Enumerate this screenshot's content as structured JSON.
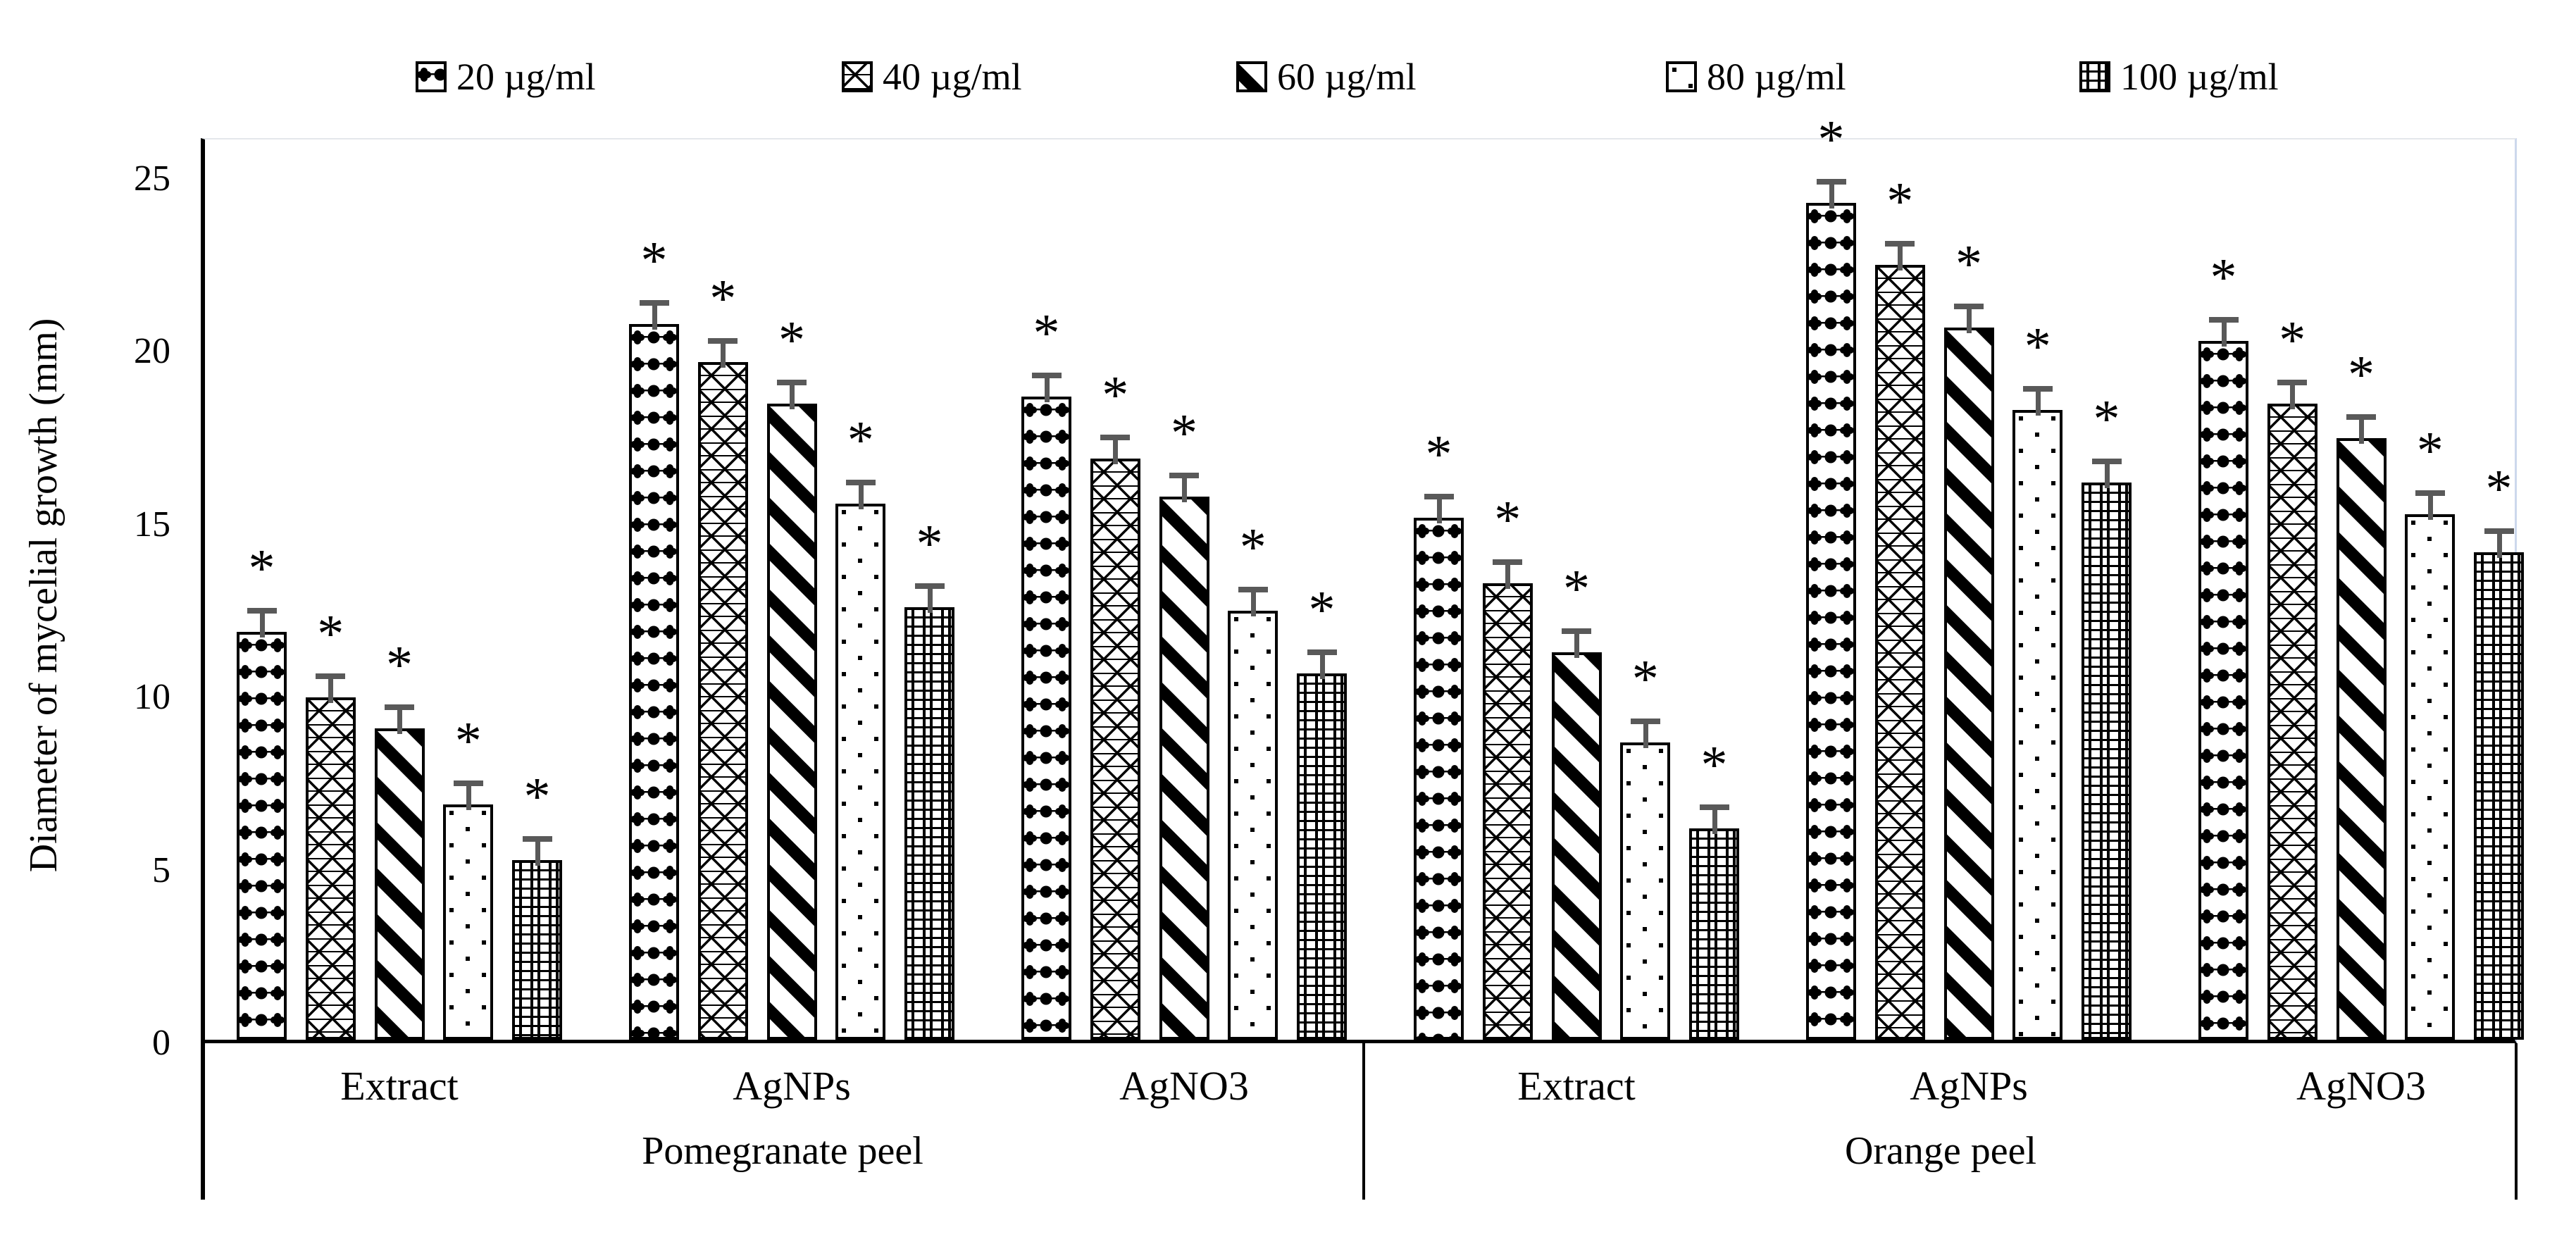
{
  "chart_data": {
    "type": "bar",
    "title": "",
    "ylabel": "Diameter of mycelial growth (mm)",
    "ylim": [
      0,
      25
    ],
    "yticks": [
      "0",
      "5",
      "10",
      "15",
      "20",
      "25"
    ],
    "grid": false,
    "legend_position": "top",
    "series_labels": [
      "20 µg/ml",
      "40 µg/ml",
      "60 µg/ml",
      "80 µg/ml",
      "100 µg/ml"
    ],
    "series_pattern_icons": [
      "diamond-clover-rows-pattern",
      "diagonal-crosshatch-pattern",
      "downward-diagonal-stripe-pattern",
      "sparse-dots-pattern",
      "tartan-grid-pattern"
    ],
    "groups": [
      {
        "peel": "Pomegranate peel",
        "treatment": "Extract",
        "values": [
          11.8,
          9.9,
          9.0,
          6.8,
          5.2
        ]
      },
      {
        "peel": "Pomegranate peel",
        "treatment": "AgNPs",
        "values": [
          20.7,
          19.6,
          18.4,
          15.5,
          12.5
        ]
      },
      {
        "peel": "Pomegranate peel",
        "treatment": "AgNO3",
        "values": [
          18.6,
          16.8,
          15.7,
          12.4,
          10.6
        ]
      },
      {
        "peel": "Orange peel",
        "treatment": "Extract",
        "values": [
          15.1,
          13.2,
          11.2,
          8.6,
          6.1
        ]
      },
      {
        "peel": "Orange peel",
        "treatment": "AgNPs",
        "values": [
          24.2,
          22.4,
          20.6,
          18.2,
          16.1
        ]
      },
      {
        "peel": "Orange peel",
        "treatment": "AgNO3",
        "values": [
          20.2,
          18.4,
          17.4,
          15.2,
          14.1
        ]
      }
    ],
    "group_axis": {
      "level1": [
        "Extract",
        "AgNPs",
        "AgNO3",
        "Extract",
        "AgNPs",
        "AgNO3"
      ],
      "level2": [
        "Pomegranate peel",
        "Orange peel"
      ]
    },
    "error_bar_value": 0.5,
    "significance_marker": "*"
  },
  "colors": {
    "bar_fill": "#ffffff",
    "bar_stroke": "#000000",
    "error_bar": "#595959",
    "axis_line": "#000000",
    "plot_right_border": "#ccd8ec",
    "plot_top_border": "#e4e7eb",
    "text": "#000000",
    "background": "#ffffff"
  }
}
